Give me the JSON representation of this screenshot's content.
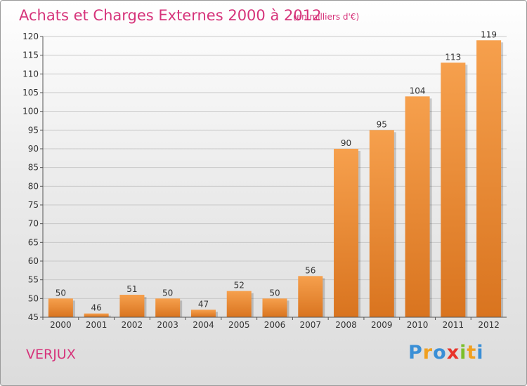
{
  "chart_data": {
    "type": "bar",
    "title": "Achats et Charges Externes 2000 à 2012",
    "subtitle": "(en milliers d'€)",
    "categories": [
      "2000",
      "2001",
      "2002",
      "2003",
      "2004",
      "2005",
      "2006",
      "2007",
      "2008",
      "2009",
      "2010",
      "2011",
      "2012"
    ],
    "values": [
      50,
      46,
      51,
      50,
      47,
      52,
      50,
      56,
      90,
      95,
      104,
      113,
      119
    ],
    "ylim": [
      45,
      120
    ],
    "yticks": [
      45,
      50,
      55,
      60,
      65,
      70,
      75,
      80,
      85,
      90,
      95,
      100,
      105,
      110,
      115,
      120
    ],
    "xlabel": "",
    "ylabel": "",
    "grid": true,
    "colors": {
      "bar_light": "#f6a04d",
      "bar_dark": "#d9741f",
      "title": "#d6337a"
    }
  },
  "footer": {
    "commune": "VERJUX",
    "logo_letters": [
      {
        "ch": "P",
        "color": "#3a8fd6"
      },
      {
        "ch": "r",
        "color": "#f0a020"
      },
      {
        "ch": "o",
        "color": "#3a8fd6"
      },
      {
        "ch": "x",
        "color": "#e8332a"
      },
      {
        "ch": "i",
        "color": "#7bbf2a"
      },
      {
        "ch": "t",
        "color": "#f0a020"
      },
      {
        "ch": "i",
        "color": "#3a8fd6"
      }
    ]
  }
}
